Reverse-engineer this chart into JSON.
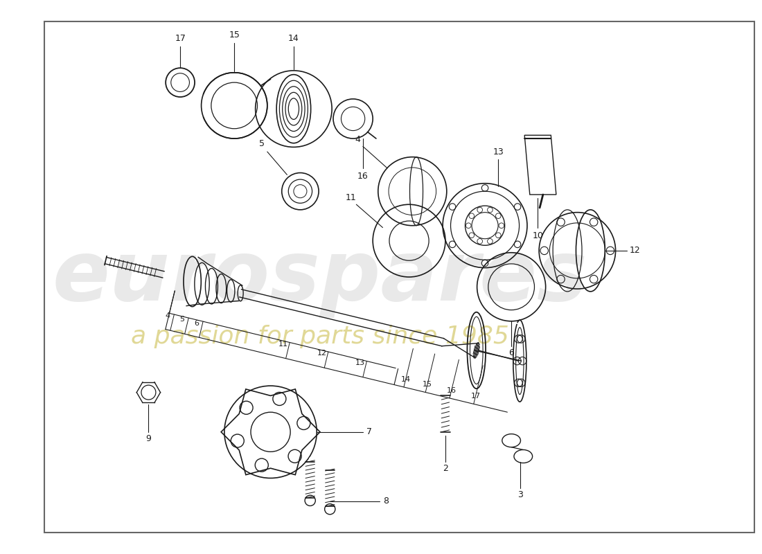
{
  "background_color": "#ffffff",
  "line_color": "#1a1a1a",
  "watermark_text1": "eurospares",
  "watermark_text2": "a passion for parts since 1985",
  "watermark_color1": "#b0b0b0",
  "watermark_color2": "#c8b840",
  "border_color": "#666666",
  "fig_w": 1100,
  "fig_h": 800
}
